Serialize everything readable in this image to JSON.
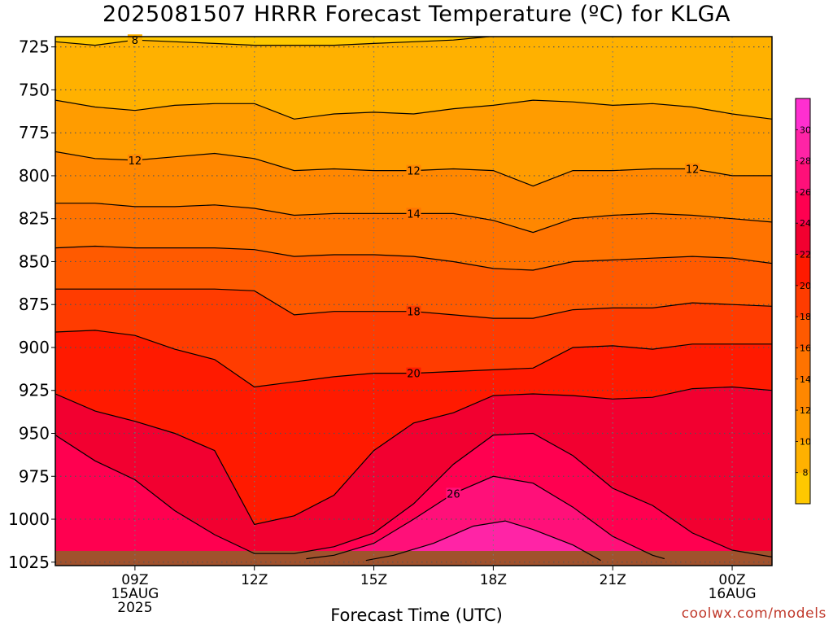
{
  "title": "2025081507 HRRR Forecast Temperature (ºC) for KLGA",
  "credit": "coolwx.com/models",
  "chart_data": {
    "type": "heatmap",
    "title": "2025081507 HRRR Forecast Temperature (ºC) for KLGA",
    "xlabel": "Forecast Time (UTC)",
    "ylabel": "",
    "y_axis": {
      "ticks": [
        725,
        750,
        775,
        800,
        825,
        850,
        875,
        900,
        925,
        950,
        975,
        1000,
        1025
      ],
      "range": [
        719,
        1027
      ],
      "reversed": true
    },
    "x_axis": {
      "range_hours": [
        7,
        25
      ],
      "ticks": [
        {
          "hour": 9,
          "lines": [
            "09Z",
            "15AUG",
            "2025"
          ]
        },
        {
          "hour": 12,
          "lines": [
            "12Z"
          ]
        },
        {
          "hour": 15,
          "lines": [
            "15Z"
          ]
        },
        {
          "hour": 18,
          "lines": [
            "18Z"
          ]
        },
        {
          "hour": 21,
          "lines": [
            "21Z"
          ]
        },
        {
          "hour": 24,
          "lines": [
            "00Z",
            "16AUG"
          ]
        }
      ]
    },
    "contour_levels": [
      8,
      10,
      12,
      14,
      16,
      18,
      20,
      22,
      24,
      26,
      28
    ],
    "contours": [
      {
        "level": 8,
        "label": "8",
        "points": [
          [
            7,
            722
          ],
          [
            8,
            724
          ],
          [
            9,
            721
          ],
          [
            10,
            722
          ],
          [
            11,
            723
          ],
          [
            12,
            724
          ],
          [
            13,
            724
          ],
          [
            14,
            724
          ],
          [
            15,
            723
          ],
          [
            16,
            722
          ],
          [
            17,
            721
          ],
          [
            17.9,
            719
          ]
        ]
      },
      {
        "level": 10,
        "label": "",
        "points": [
          [
            7,
            756
          ],
          [
            8,
            760
          ],
          [
            9,
            762
          ],
          [
            10,
            759
          ],
          [
            11,
            758
          ],
          [
            12,
            758
          ],
          [
            13,
            767
          ],
          [
            14,
            764
          ],
          [
            15,
            763
          ],
          [
            16,
            764
          ],
          [
            17,
            761
          ],
          [
            18,
            759
          ],
          [
            19,
            756
          ],
          [
            20,
            757
          ],
          [
            21,
            759
          ],
          [
            22,
            758
          ],
          [
            23,
            760
          ],
          [
            24,
            764
          ],
          [
            25,
            767
          ]
        ]
      },
      {
        "level": 12,
        "label": "12",
        "points": [
          [
            7,
            786
          ],
          [
            8,
            790
          ],
          [
            9,
            791
          ],
          [
            10,
            789
          ],
          [
            11,
            787
          ],
          [
            12,
            790
          ],
          [
            13,
            797
          ],
          [
            14,
            796
          ],
          [
            15,
            797
          ],
          [
            16,
            797
          ],
          [
            17,
            796
          ],
          [
            18,
            797
          ],
          [
            19,
            806
          ],
          [
            20,
            797
          ],
          [
            21,
            797
          ],
          [
            22,
            796
          ],
          [
            23,
            796
          ],
          [
            24,
            800
          ],
          [
            25,
            800
          ]
        ]
      },
      {
        "level": 14,
        "label": "14",
        "points": [
          [
            7,
            816
          ],
          [
            8,
            816
          ],
          [
            9,
            818
          ],
          [
            10,
            818
          ],
          [
            11,
            817
          ],
          [
            12,
            819
          ],
          [
            13,
            823
          ],
          [
            14,
            822
          ],
          [
            15,
            822
          ],
          [
            16,
            822
          ],
          [
            17,
            822
          ],
          [
            18,
            826
          ],
          [
            19,
            833
          ],
          [
            20,
            825
          ],
          [
            21,
            823
          ],
          [
            22,
            822
          ],
          [
            23,
            823
          ],
          [
            24,
            825
          ],
          [
            25,
            827
          ]
        ]
      },
      {
        "level": 16,
        "label": "",
        "points": [
          [
            7,
            842
          ],
          [
            8,
            841
          ],
          [
            9,
            842
          ],
          [
            10,
            842
          ],
          [
            11,
            842
          ],
          [
            12,
            843
          ],
          [
            13,
            847
          ],
          [
            14,
            846
          ],
          [
            15,
            846
          ],
          [
            16,
            847
          ],
          [
            17,
            850
          ],
          [
            18,
            854
          ],
          [
            19,
            855
          ],
          [
            20,
            850
          ],
          [
            21,
            849
          ],
          [
            22,
            848
          ],
          [
            23,
            847
          ],
          [
            24,
            848
          ],
          [
            25,
            851
          ]
        ]
      },
      {
        "level": 18,
        "label": "18",
        "points": [
          [
            7,
            866
          ],
          [
            8,
            866
          ],
          [
            9,
            866
          ],
          [
            10,
            866
          ],
          [
            11,
            866
          ],
          [
            12,
            867
          ],
          [
            13,
            881
          ],
          [
            14,
            879
          ],
          [
            15,
            879
          ],
          [
            16,
            879
          ],
          [
            17,
            881
          ],
          [
            18,
            883
          ],
          [
            19,
            883
          ],
          [
            20,
            878
          ],
          [
            21,
            877
          ],
          [
            22,
            877
          ],
          [
            23,
            874
          ],
          [
            24,
            875
          ],
          [
            25,
            876
          ]
        ]
      },
      {
        "level": 20,
        "label": "20",
        "points": [
          [
            7,
            891
          ],
          [
            8,
            890
          ],
          [
            9,
            893
          ],
          [
            10,
            901
          ],
          [
            11,
            907
          ],
          [
            12,
            923
          ],
          [
            13,
            920
          ],
          [
            14,
            917
          ],
          [
            15,
            915
          ],
          [
            16,
            915
          ],
          [
            17,
            914
          ],
          [
            18,
            913
          ],
          [
            19,
            912
          ],
          [
            20,
            900
          ],
          [
            21,
            899
          ],
          [
            22,
            901
          ],
          [
            23,
            898
          ],
          [
            24,
            898
          ],
          [
            25,
            898
          ]
        ]
      },
      {
        "level": 22,
        "label": "",
        "points": [
          [
            7,
            927
          ],
          [
            8,
            937
          ],
          [
            9,
            943
          ],
          [
            10,
            950
          ],
          [
            11,
            960
          ],
          [
            12,
            1003
          ],
          [
            13,
            998
          ],
          [
            14,
            986
          ],
          [
            15,
            960
          ],
          [
            16,
            944
          ],
          [
            17,
            938
          ],
          [
            18,
            928
          ],
          [
            19,
            927
          ],
          [
            20,
            928
          ],
          [
            21,
            930
          ],
          [
            22,
            929
          ],
          [
            23,
            924
          ],
          [
            24,
            923
          ],
          [
            25,
            925
          ]
        ]
      },
      {
        "level": 24,
        "label": "",
        "points": [
          [
            7,
            951
          ],
          [
            8,
            966
          ],
          [
            9,
            977
          ],
          [
            10,
            995
          ],
          [
            11,
            1009
          ],
          [
            12,
            1020
          ],
          [
            13,
            1020
          ],
          [
            14,
            1016
          ],
          [
            15,
            1008
          ],
          [
            16,
            991
          ],
          [
            17,
            968
          ],
          [
            18,
            951
          ],
          [
            19,
            950
          ],
          [
            20,
            963
          ],
          [
            21,
            982
          ],
          [
            22,
            992
          ],
          [
            23,
            1008
          ],
          [
            24,
            1018
          ],
          [
            25,
            1022
          ]
        ]
      },
      {
        "level": 26,
        "label": "26",
        "points": [
          [
            13.3,
            1023
          ],
          [
            14,
            1021
          ],
          [
            15,
            1014
          ],
          [
            16,
            1000
          ],
          [
            17,
            985
          ],
          [
            18,
            975
          ],
          [
            19,
            979
          ],
          [
            20,
            993
          ],
          [
            21,
            1010
          ],
          [
            22,
            1021
          ],
          [
            22.3,
            1023
          ]
        ]
      },
      {
        "level": 28,
        "label": "",
        "points": [
          [
            14.8,
            1024
          ],
          [
            15.5,
            1021
          ],
          [
            16.5,
            1014
          ],
          [
            17.5,
            1004
          ],
          [
            18.3,
            1001
          ],
          [
            19,
            1006
          ],
          [
            20,
            1015
          ],
          [
            20.7,
            1024
          ]
        ]
      }
    ],
    "legend": {
      "placement": "right",
      "type": "colorbar",
      "labels": [
        8,
        10,
        12,
        14,
        16,
        18,
        20,
        22,
        24,
        26,
        28,
        30
      ],
      "colors": [
        "#ffc800",
        "#ffb100",
        "#ff9c00",
        "#ff8700",
        "#ff7300",
        "#ff5a00",
        "#ff3c00",
        "#ff1a00",
        "#f20030",
        "#ff0050",
        "#ff1079",
        "#ff24a6",
        "#ff2fd0"
      ]
    },
    "terrain_color": "#a0522d",
    "grid": true
  }
}
